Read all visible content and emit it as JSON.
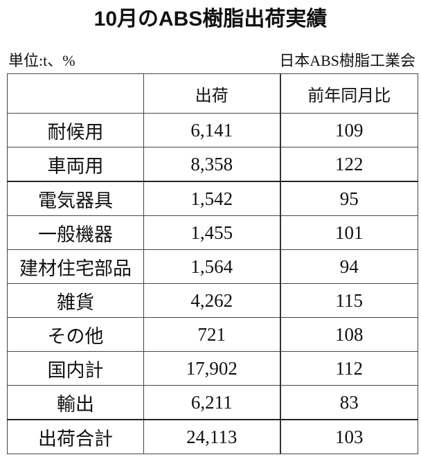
{
  "title": "10月のABS樹脂出荷実績",
  "unit": "単位:t、%",
  "source": "日本ABS樹脂工業会",
  "table": {
    "headers": [
      "",
      "出荷",
      "前年同月比"
    ],
    "rows": [
      {
        "label": "耐候用",
        "shipment": "6,141",
        "yoy": "109"
      },
      {
        "label": "車両用",
        "shipment": "8,358",
        "yoy": "122"
      },
      {
        "label": "電気器具",
        "shipment": "1,542",
        "yoy": "95"
      },
      {
        "label": "一般機器",
        "shipment": "1,455",
        "yoy": "101"
      },
      {
        "label": "建材住宅部品",
        "shipment": "1,564",
        "yoy": "94"
      },
      {
        "label": "雑貨",
        "shipment": "4,262",
        "yoy": "115"
      },
      {
        "label": "その他",
        "shipment": "721",
        "yoy": "108"
      },
      {
        "label": "国内計",
        "shipment": "17,902",
        "yoy": "112"
      },
      {
        "label": "輸出",
        "shipment": "6,211",
        "yoy": "83"
      },
      {
        "label": "出荷合計",
        "shipment": "24,113",
        "yoy": "103"
      }
    ]
  }
}
